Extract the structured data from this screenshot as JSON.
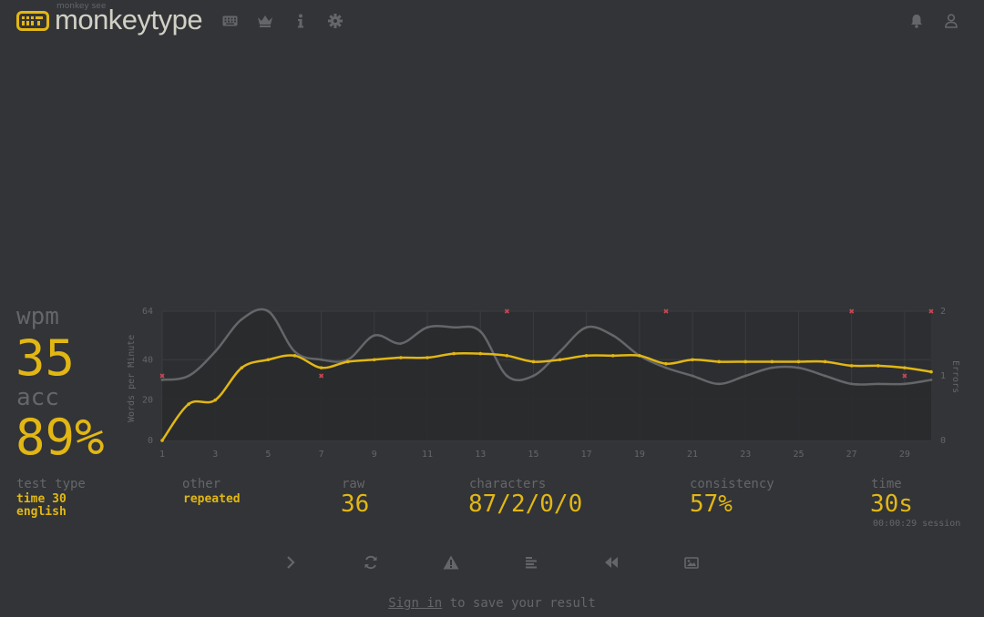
{
  "header": {
    "logo_sub": "monkey see",
    "logo_text": "monkeytype",
    "nav": [
      {
        "name": "keyboard-icon"
      },
      {
        "name": "crown-icon"
      },
      {
        "name": "info-icon"
      },
      {
        "name": "gear-icon"
      }
    ],
    "right": [
      {
        "name": "bell-icon"
      },
      {
        "name": "user-icon"
      }
    ]
  },
  "result": {
    "wpm_label": "wpm",
    "wpm": "35",
    "acc_label": "acc",
    "acc": "89%",
    "test_type_label": "test type",
    "test_type_line1": "time 30",
    "test_type_line2": "english",
    "other_label": "other",
    "other_value": "repeated",
    "raw_label": "raw",
    "raw": "36",
    "characters_label": "characters",
    "characters": "87/2/0/0",
    "consistency_label": "consistency",
    "consistency": "57%",
    "time_label": "time",
    "time": "30s",
    "session": "00:00:29 session"
  },
  "buttons": [
    {
      "name": "next-test-button-icon"
    },
    {
      "name": "restart-test-button-icon"
    },
    {
      "name": "report-warning-icon"
    },
    {
      "name": "word-history-icon"
    },
    {
      "name": "replay-icon"
    },
    {
      "name": "screenshot-image-icon"
    }
  ],
  "footer": {
    "link": "Sign in",
    "text": " to save your result"
  },
  "colors": {
    "background": "#323437",
    "main": "#e2b714",
    "sub": "#646669",
    "text": "#d1d0c5",
    "error": "#ca4754"
  },
  "chart_data": {
    "type": "line",
    "x": [
      1,
      2,
      3,
      4,
      5,
      6,
      7,
      8,
      9,
      10,
      11,
      12,
      13,
      14,
      15,
      16,
      17,
      18,
      19,
      20,
      21,
      22,
      23,
      24,
      25,
      26,
      27,
      28,
      29,
      30
    ],
    "x_ticks": [
      1,
      3,
      5,
      7,
      9,
      11,
      13,
      15,
      17,
      19,
      21,
      23,
      25,
      27,
      29
    ],
    "ylabel": "Words per Minute",
    "y2label": "Errors",
    "ylim": [
      0,
      64
    ],
    "y_ticks": [
      0,
      20,
      40,
      64
    ],
    "y2lim": [
      0,
      2
    ],
    "y2_ticks": [
      0,
      1,
      2
    ],
    "series": [
      {
        "color": "#e2b714",
        "values": [
          0,
          18,
          20,
          36,
          40,
          42,
          36,
          39,
          40,
          41,
          41,
          43,
          43,
          42,
          39,
          40,
          42,
          42,
          42,
          38,
          40,
          39,
          39,
          39,
          39,
          39,
          37,
          37,
          36,
          34
        ]
      },
      {
        "color": "#646669",
        "values": [
          30,
          32,
          44,
          60,
          64,
          44,
          40,
          40,
          52,
          48,
          56,
          56,
          54,
          32,
          32,
          44,
          56,
          52,
          42,
          36,
          32,
          28,
          32,
          36,
          36,
          32,
          28,
          28,
          28,
          30
        ]
      }
    ],
    "errors": [
      {
        "x": 1,
        "count": 1
      },
      {
        "x": 7,
        "count": 1
      },
      {
        "x": 14,
        "count": 2
      },
      {
        "x": 20,
        "count": 2
      },
      {
        "x": 27,
        "count": 2
      },
      {
        "x": 29,
        "count": 1
      },
      {
        "x": 30,
        "count": 2
      }
    ]
  }
}
